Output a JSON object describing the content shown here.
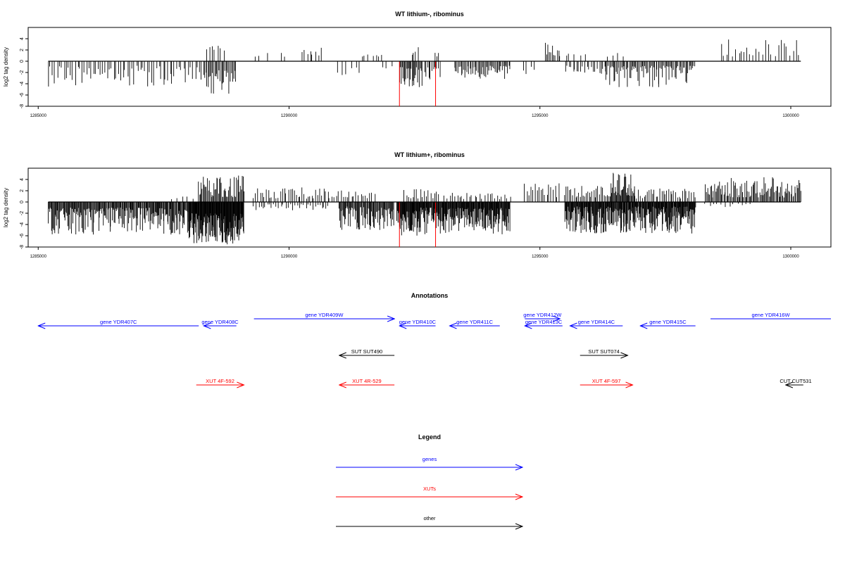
{
  "chart_data": [
    {
      "type": "bar",
      "title": "WT lithium-, ribominus",
      "ylabel": "log2 tag density",
      "xlabel": "",
      "xlim": [
        1284800,
        1300800
      ],
      "ylim": [
        -8,
        6
      ],
      "x_ticks": [
        1285000,
        1290000,
        1295000,
        1300000
      ],
      "x_tick_labels": [
        "1285000",
        "1290000",
        "1295000",
        "1300000"
      ],
      "y_ticks": [
        4,
        2,
        0,
        -2,
        -4,
        -6,
        -8
      ],
      "y_tick_labels": [
        "4",
        "2",
        "0",
        "-2",
        "-4",
        "-6",
        "-8"
      ],
      "baseline_range": [
        1285200,
        1300200
      ],
      "series": [
        {
          "color": "#000000",
          "segments": [
            {
              "start": 1285200,
              "end": 1288300,
              "sign": -1,
              "min": 0.8,
              "max": 4.6,
              "step": 45
            },
            {
              "start": 1288300,
              "end": 1288950,
              "sign": -1,
              "min": 1.5,
              "max": 5.8,
              "step": 22
            },
            {
              "start": 1288350,
              "end": 1288750,
              "sign": 1,
              "min": 0.8,
              "max": 3.0,
              "step": 60
            },
            {
              "start": 1289300,
              "end": 1290000,
              "sign": 1,
              "min": 0.8,
              "max": 2.3,
              "step": 160
            },
            {
              "start": 1290250,
              "end": 1290650,
              "sign": 1,
              "min": 1.0,
              "max": 3.2,
              "step": 55
            },
            {
              "start": 1290950,
              "end": 1291400,
              "sign": -1,
              "min": 0.8,
              "max": 2.6,
              "step": 90
            },
            {
              "start": 1291450,
              "end": 1291900,
              "sign": 1,
              "min": 0.8,
              "max": 1.7,
              "step": 70
            },
            {
              "start": 1291850,
              "end": 1292100,
              "sign": -1,
              "min": 0.8,
              "max": 1.6,
              "step": 90
            },
            {
              "start": 1292200,
              "end": 1292650,
              "sign": -1,
              "min": 1.0,
              "max": 4.6,
              "step": 18
            },
            {
              "start": 1292450,
              "end": 1292600,
              "sign": 1,
              "min": 1.0,
              "max": 2.6,
              "step": 40
            },
            {
              "start": 1292700,
              "end": 1293000,
              "sign": -1,
              "min": 0.8,
              "max": 3.5,
              "step": 30
            },
            {
              "start": 1292900,
              "end": 1293000,
              "sign": 1,
              "min": 0.8,
              "max": 1.6,
              "step": 40
            },
            {
              "start": 1293300,
              "end": 1294400,
              "sign": -1,
              "min": 0.8,
              "max": 3.2,
              "step": 22
            },
            {
              "start": 1294650,
              "end": 1294950,
              "sign": -1,
              "min": 0.8,
              "max": 2.5,
              "step": 80
            },
            {
              "start": 1295100,
              "end": 1295400,
              "sign": 1,
              "min": 0.8,
              "max": 3.4,
              "step": 30
            },
            {
              "start": 1295500,
              "end": 1296000,
              "sign": 1,
              "min": 0.8,
              "max": 1.8,
              "step": 110
            },
            {
              "start": 1295500,
              "end": 1296300,
              "sign": -1,
              "min": 0.8,
              "max": 2.6,
              "step": 40
            },
            {
              "start": 1296300,
              "end": 1296700,
              "sign": 1,
              "min": 0.8,
              "max": 1.6,
              "step": 130
            },
            {
              "start": 1296300,
              "end": 1298100,
              "sign": -1,
              "min": 0.8,
              "max": 4.6,
              "step": 22
            },
            {
              "start": 1298600,
              "end": 1300200,
              "sign": 1,
              "min": 0.8,
              "max": 4.2,
              "step": 60
            }
          ]
        },
        {
          "color": "#ff0000",
          "lines": [
            {
              "x": 1292200,
              "y": -8
            },
            {
              "x": 1292920,
              "y": -8
            }
          ]
        }
      ]
    },
    {
      "type": "bar",
      "title": "WT lithium+, ribominus",
      "ylabel": "log2 tag density",
      "xlabel": "",
      "xlim": [
        1284800,
        1300800
      ],
      "ylim": [
        -8,
        6
      ],
      "x_ticks": [
        1285000,
        1290000,
        1295000,
        1300000
      ],
      "x_tick_labels": [
        "1285000",
        "1290000",
        "1295000",
        "1300000"
      ],
      "y_ticks": [
        4,
        2,
        0,
        -2,
        -4,
        -6,
        -8
      ],
      "y_tick_labels": [
        "4",
        "2",
        "0",
        "-2",
        "-4",
        "-6",
        "-8"
      ],
      "baseline_range": [
        1285200,
        1300200
      ],
      "series": [
        {
          "color": "#000000",
          "segments": [
            {
              "start": 1285200,
              "end": 1288000,
              "sign": -1,
              "min": 1.0,
              "max": 5.8,
              "step": 14
            },
            {
              "start": 1287700,
              "end": 1288100,
              "sign": 1,
              "min": 0.5,
              "max": 1.0,
              "step": 100
            },
            {
              "start": 1288000,
              "end": 1289100,
              "sign": -1,
              "min": 2.0,
              "max": 7.6,
              "step": 8
            },
            {
              "start": 1288200,
              "end": 1289100,
              "sign": 1,
              "min": 0.8,
              "max": 5.0,
              "step": 18
            },
            {
              "start": 1289300,
              "end": 1290800,
              "sign": 1,
              "min": 0.6,
              "max": 2.6,
              "step": 40
            },
            {
              "start": 1289300,
              "end": 1290800,
              "sign": -1,
              "min": 0.4,
              "max": 1.5,
              "step": 45
            },
            {
              "start": 1290800,
              "end": 1291700,
              "sign": 1,
              "min": 0.6,
              "max": 2.2,
              "step": 45
            },
            {
              "start": 1291000,
              "end": 1292100,
              "sign": -1,
              "min": 0.8,
              "max": 5.0,
              "step": 14
            },
            {
              "start": 1292150,
              "end": 1292600,
              "sign": -1,
              "min": 1.5,
              "max": 6.0,
              "step": 9
            },
            {
              "start": 1292300,
              "end": 1293000,
              "sign": 1,
              "min": 0.6,
              "max": 2.4,
              "step": 40
            },
            {
              "start": 1292600,
              "end": 1294400,
              "sign": -1,
              "min": 1.0,
              "max": 5.8,
              "step": 10
            },
            {
              "start": 1293100,
              "end": 1294400,
              "sign": 1,
              "min": 0.5,
              "max": 1.8,
              "step": 50
            },
            {
              "start": 1294700,
              "end": 1295400,
              "sign": 1,
              "min": 0.8,
              "max": 3.4,
              "step": 40
            },
            {
              "start": 1295500,
              "end": 1296400,
              "sign": 1,
              "min": 0.8,
              "max": 3.0,
              "step": 30
            },
            {
              "start": 1295500,
              "end": 1298100,
              "sign": -1,
              "min": 0.8,
              "max": 5.6,
              "step": 10
            },
            {
              "start": 1296400,
              "end": 1296900,
              "sign": 1,
              "min": 1.0,
              "max": 5.2,
              "step": 14
            },
            {
              "start": 1296900,
              "end": 1298100,
              "sign": 1,
              "min": 0.6,
              "max": 2.4,
              "step": 35
            },
            {
              "start": 1298300,
              "end": 1300200,
              "sign": 1,
              "min": 0.8,
              "max": 4.4,
              "step": 20
            },
            {
              "start": 1298300,
              "end": 1299200,
              "sign": -1,
              "min": 0.3,
              "max": 0.9,
              "step": 80
            }
          ]
        },
        {
          "color": "#ff0000",
          "lines": [
            {
              "x": 1292200,
              "y": -8
            },
            {
              "x": 1292920,
              "y": -8
            }
          ]
        }
      ]
    }
  ],
  "annotations": {
    "title": "Annotations",
    "features": [
      {
        "label": "gene YDR407C",
        "start": 1285000,
        "end": 1288200,
        "strand": "-",
        "row": 1,
        "color": "#0000ff"
      },
      {
        "label": "gene YDR408C",
        "start": 1288300,
        "end": 1288950,
        "strand": "-",
        "row": 1,
        "color": "#0000ff"
      },
      {
        "label": "gene YDR409W",
        "start": 1289300,
        "end": 1292100,
        "strand": "+",
        "row": 0,
        "color": "#0000ff"
      },
      {
        "label": "gene YDR410C",
        "start": 1292200,
        "end": 1292920,
        "strand": "-",
        "row": 1,
        "color": "#0000ff"
      },
      {
        "label": "gene YDR411C",
        "start": 1293200,
        "end": 1294200,
        "strand": "-",
        "row": 1,
        "color": "#0000ff"
      },
      {
        "label": "gene YDR412W",
        "start": 1294700,
        "end": 1295400,
        "strand": "+",
        "row": 0,
        "color": "#0000ff"
      },
      {
        "label": "gene YDR413C",
        "start": 1294700,
        "end": 1295450,
        "strand": "-",
        "row": 1,
        "color": "#0000ff"
      },
      {
        "label": "gene YDR414C",
        "start": 1295600,
        "end": 1296650,
        "strand": "-",
        "row": 1,
        "color": "#0000ff"
      },
      {
        "label": "gene YDR415C",
        "start": 1297000,
        "end": 1298100,
        "strand": "-",
        "row": 1,
        "color": "#0000ff"
      },
      {
        "label": "gene YDR416W",
        "start": 1298400,
        "end": 1300800,
        "strand": "+",
        "row": 0,
        "color": "#0000ff"
      },
      {
        "label": "SUT SUT490",
        "start": 1291000,
        "end": 1292100,
        "strand": "-",
        "row": 2,
        "color": "#000000"
      },
      {
        "label": "SUT SUT074",
        "start": 1295800,
        "end": 1296750,
        "strand": "+",
        "row": 2,
        "color": "#000000"
      },
      {
        "label": "XUT 4F-592",
        "start": 1288150,
        "end": 1289100,
        "strand": "+",
        "row": 3,
        "color": "#ff0000"
      },
      {
        "label": "XUT 4R-529",
        "start": 1291000,
        "end": 1292100,
        "strand": "-",
        "row": 3,
        "color": "#ff0000"
      },
      {
        "label": "XUT 4F-597",
        "start": 1295800,
        "end": 1296850,
        "strand": "+",
        "row": 3,
        "color": "#ff0000"
      },
      {
        "label": "CUT CUT531",
        "start": 1299900,
        "end": 1300250,
        "strand": "-",
        "row": 3,
        "color": "#000000"
      }
    ]
  },
  "legend": {
    "title": "Legend",
    "items": [
      {
        "label": "genes",
        "color": "#0000ff"
      },
      {
        "label": "XUTs",
        "color": "#ff0000"
      },
      {
        "label": "other",
        "color": "#000000"
      }
    ]
  }
}
